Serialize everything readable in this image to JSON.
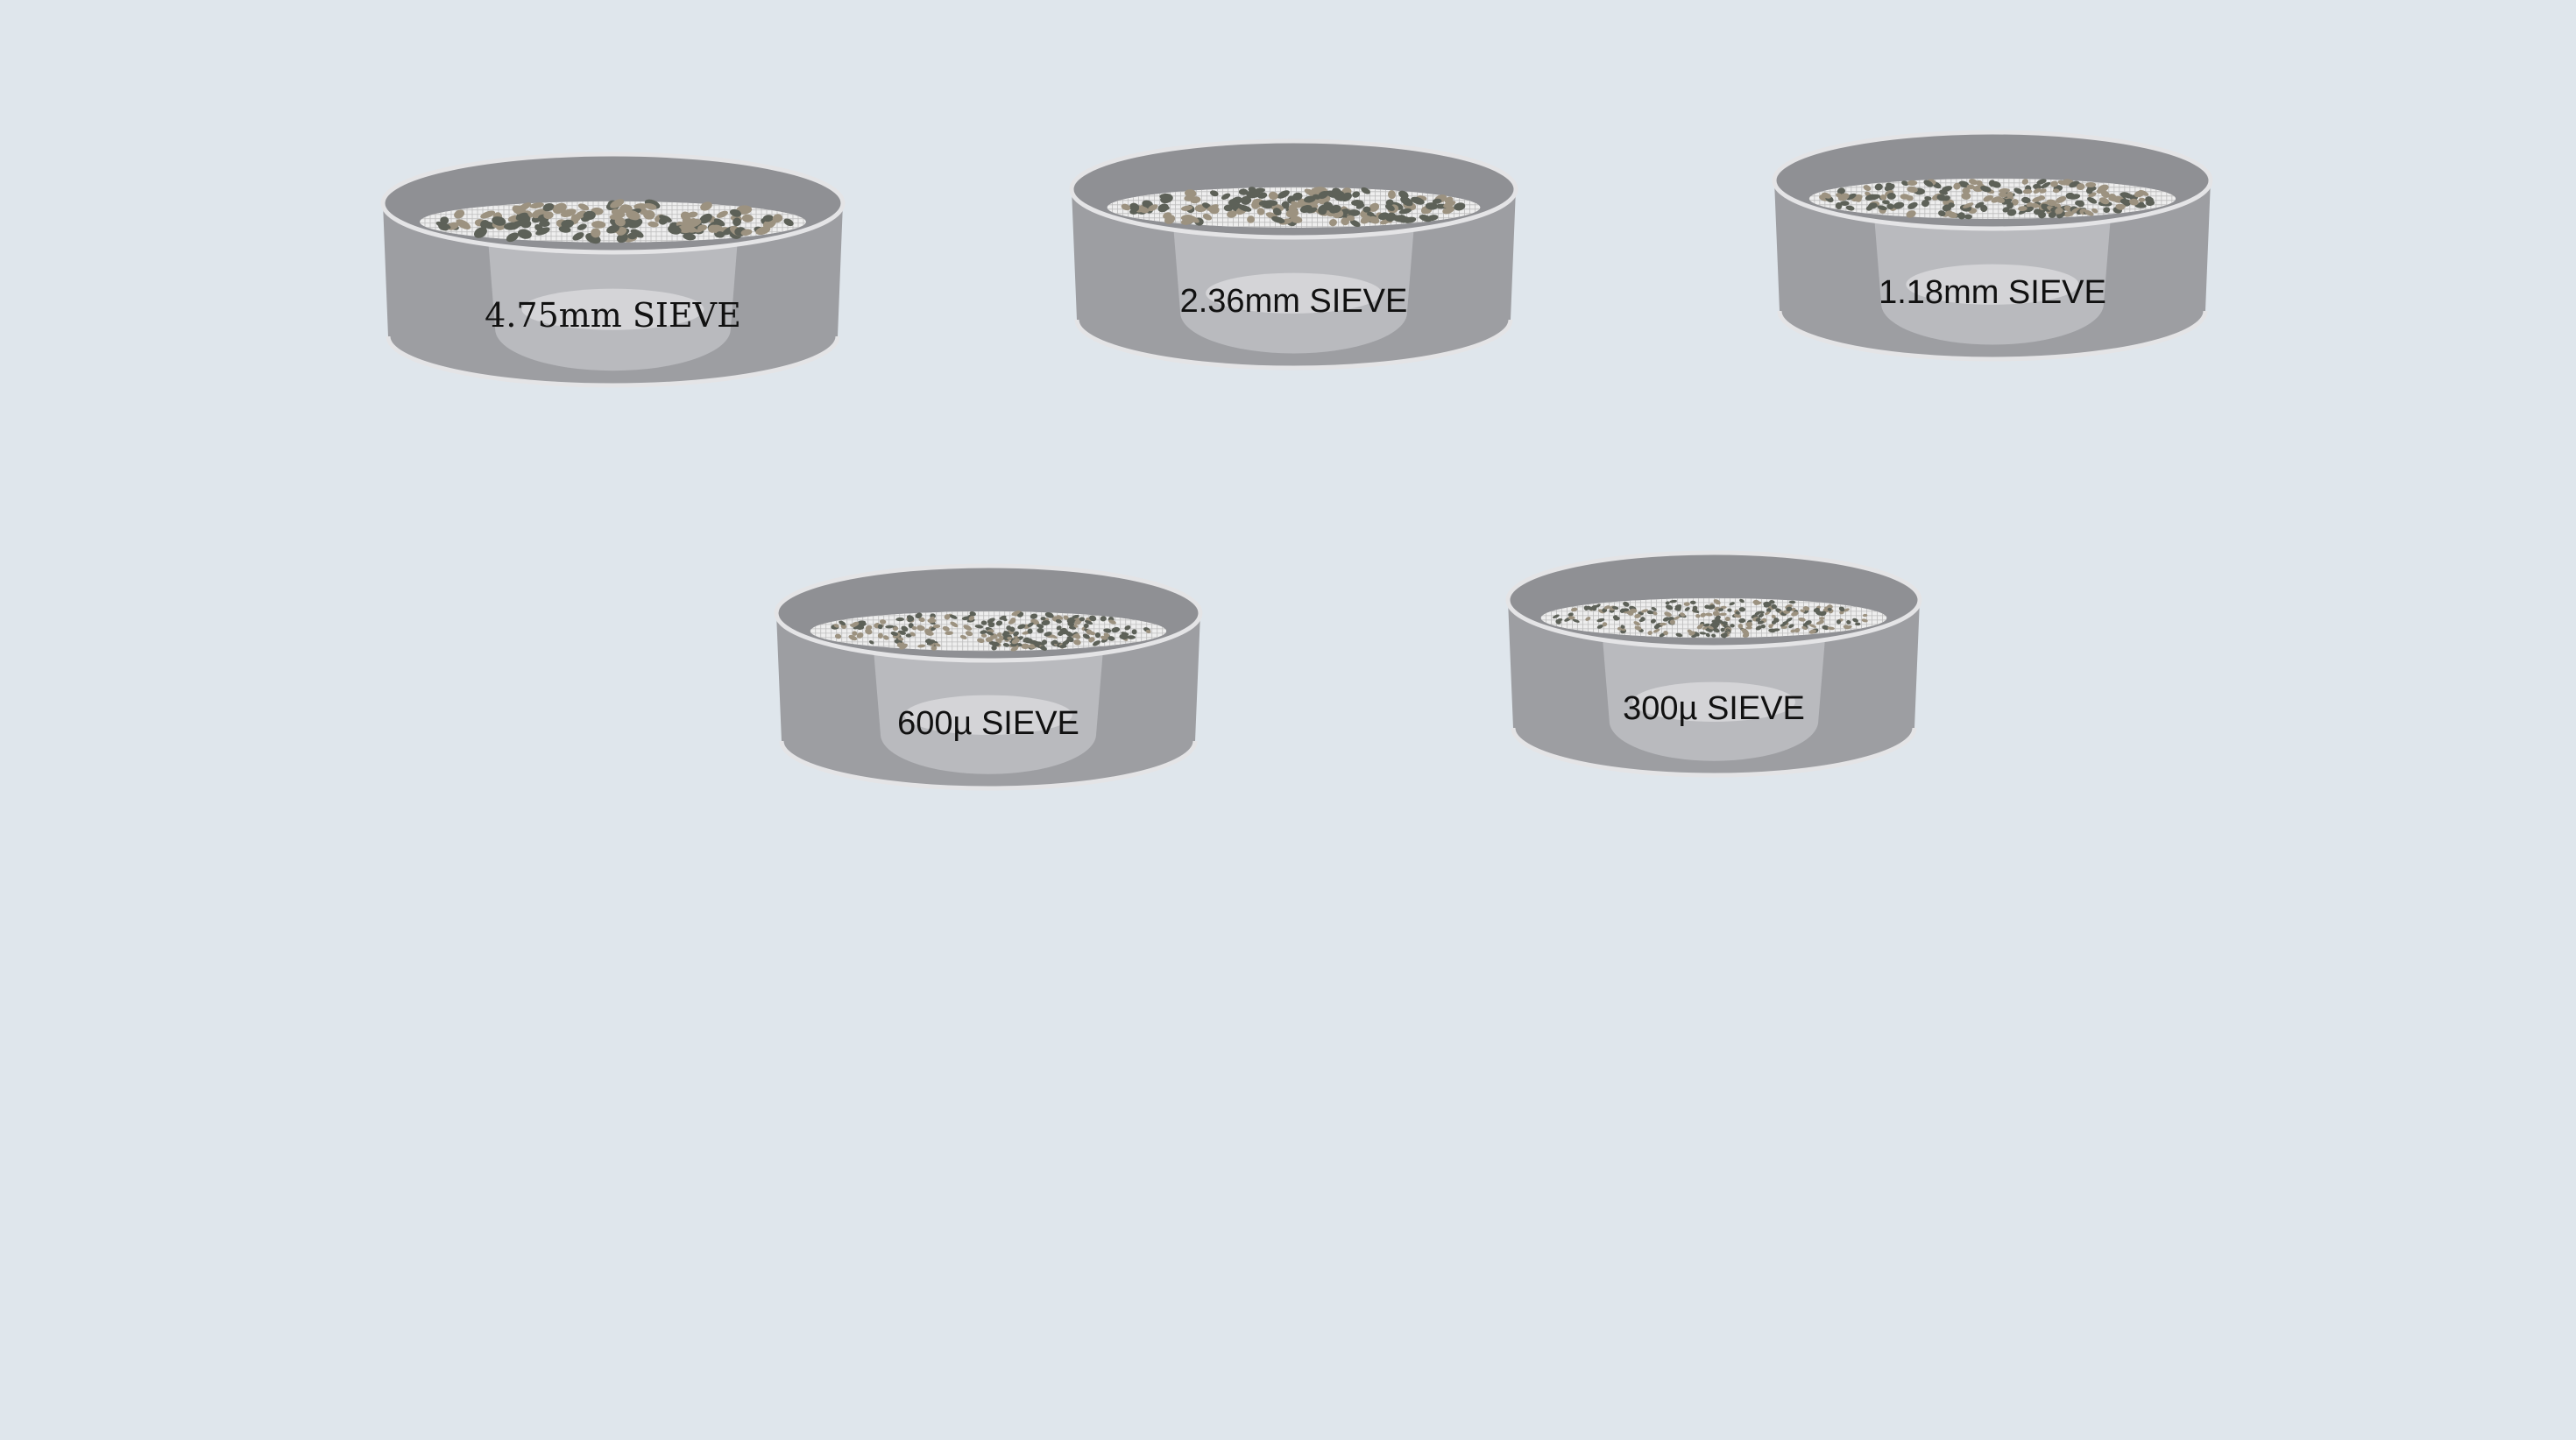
{
  "sieves": [
    {
      "label": "4.75mm SIEVE"
    },
    {
      "label": "2.36mm SIEVE"
    },
    {
      "label": "1.18mm SIEVE"
    },
    {
      "label": "600µ SIEVE"
    },
    {
      "label": "300µ SIEVE"
    }
  ],
  "colors": {
    "background": "#dfe6ec",
    "sieve_outer_wall": "#9d9ea2",
    "sieve_inner_wall": "#b9babe",
    "sieve_inner_cavity": "#8f9094",
    "sieve_rim": "#e4e4e6",
    "label_panel": "#d4d4d7",
    "mesh": "#eeeeee",
    "particle_dark": "#5d6158",
    "particle_light": "#9c9280"
  },
  "particle_density": [
    0.35,
    0.5,
    0.7,
    0.9,
    1.0
  ]
}
